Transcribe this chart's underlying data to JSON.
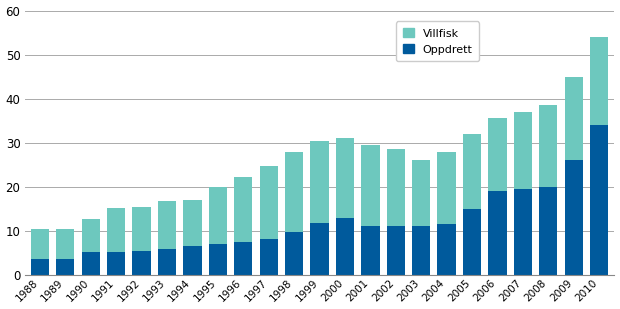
{
  "years": [
    "1988",
    "1989",
    "1990",
    "1991",
    "1992",
    "1993",
    "1994",
    "1995",
    "1996",
    "1997",
    "1998",
    "1999",
    "2000",
    "2001",
    "2002",
    "2003",
    "2004",
    "2005",
    "2006",
    "2007",
    "2008",
    "2009",
    "2010"
  ],
  "oppdrett": [
    3.5,
    3.5,
    5.2,
    5.2,
    5.5,
    5.8,
    6.5,
    7.0,
    7.5,
    8.2,
    9.8,
    11.8,
    13.0,
    11.0,
    11.0,
    11.0,
    11.5,
    15.0,
    19.0,
    19.5,
    20.0,
    26.0,
    34.0
  ],
  "villfisk": [
    7.0,
    7.0,
    7.5,
    10.0,
    10.0,
    11.0,
    10.5,
    13.0,
    14.8,
    16.5,
    18.2,
    18.5,
    18.0,
    18.5,
    17.5,
    15.0,
    16.5,
    17.0,
    16.5,
    17.5,
    18.5,
    19.0,
    20.0
  ],
  "color_villfisk": "#6DC8BE",
  "color_oppdrett": "#005A9C",
  "ylim": [
    0,
    60
  ],
  "yticks": [
    0,
    10,
    20,
    30,
    40,
    50,
    60
  ],
  "legend_villfisk": "Villfisk",
  "legend_oppdrett": "Oppdrett",
  "background_color": "#ffffff",
  "grid_color": "#aaaaaa"
}
